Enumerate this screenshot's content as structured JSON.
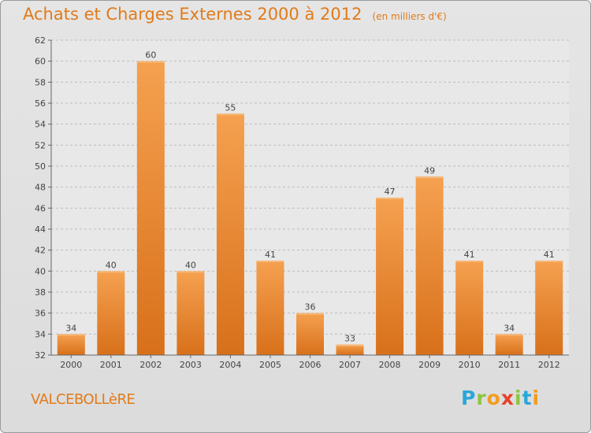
{
  "title": "Achats et Charges Externes 2000 à 2012",
  "unit": "(en milliers d'€)",
  "commune": "VALCEBOLLèRE",
  "logo": {
    "letters": [
      "P",
      "r",
      "o",
      "x",
      "i",
      "t",
      "i"
    ],
    "colors": [
      "#2aa7d9",
      "#8cc63e",
      "#f39c1f",
      "#e8412a",
      "#8cc63e",
      "#2aa7d9",
      "#f39c1f"
    ]
  },
  "chart_data": {
    "type": "bar",
    "categories": [
      "2000",
      "2001",
      "2002",
      "2003",
      "2004",
      "2005",
      "2006",
      "2007",
      "2008",
      "2009",
      "2010",
      "2011",
      "2012"
    ],
    "values": [
      34,
      40,
      60,
      40,
      55,
      41,
      36,
      33,
      47,
      49,
      41,
      34,
      41
    ],
    "ylim": [
      32,
      62
    ],
    "yticks": [
      32,
      34,
      36,
      38,
      40,
      42,
      44,
      46,
      48,
      50,
      52,
      54,
      56,
      58,
      60,
      62
    ],
    "grid": true,
    "bar_color": "#f0913a"
  }
}
